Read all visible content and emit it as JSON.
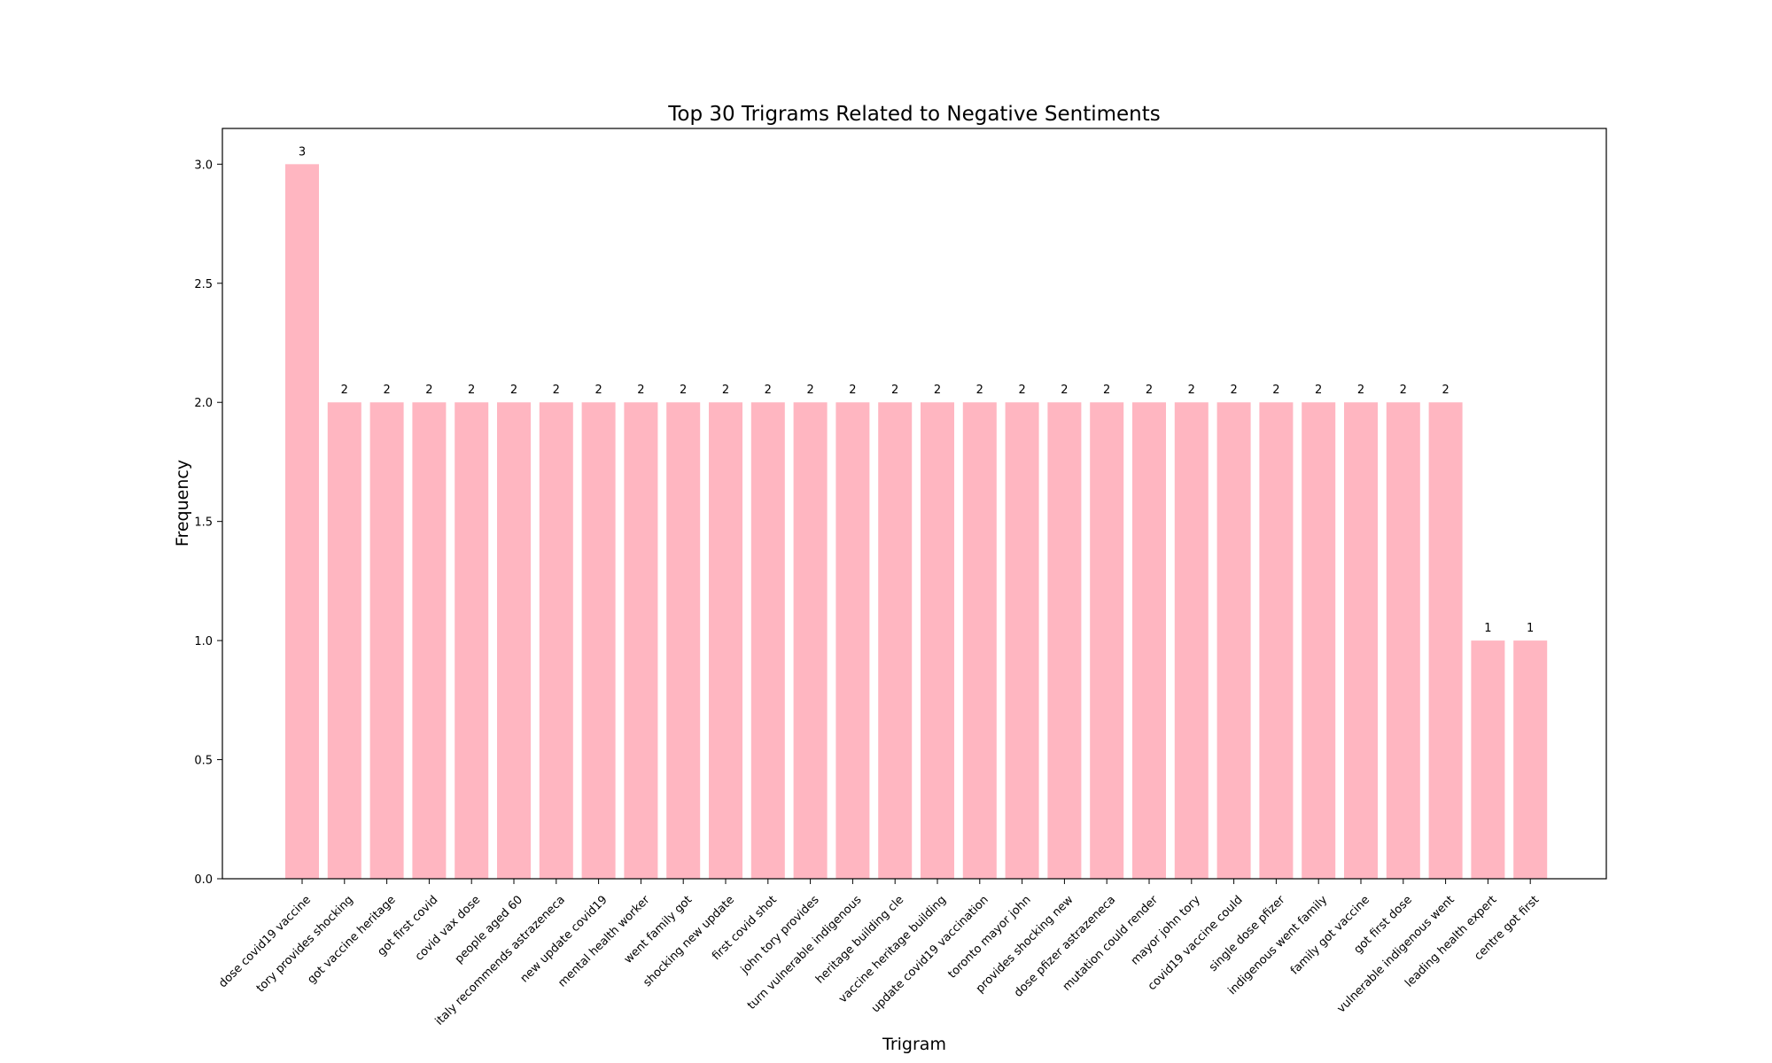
{
  "chart_data": {
    "type": "bar",
    "title": "Top 30 Trigrams Related to Negative Sentiments",
    "xlabel": "Trigram",
    "ylabel": "Frequency",
    "ylim": [
      0,
      3.15
    ],
    "yticks": [
      "0.0",
      "0.5",
      "1.0",
      "1.5",
      "2.0",
      "2.5",
      "3.0"
    ],
    "bar_color": "#ffb6c1",
    "grid": false,
    "categories": [
      "dose covid19 vaccine",
      "tory provides shocking",
      "got vaccine heritage",
      "got first covid",
      "covid vax dose",
      "people aged 60",
      "italy recommends astrazeneca",
      "new update covid19",
      "mental health worker",
      "went family got",
      "shocking new update",
      "first covid shot",
      "john tory provides",
      "turn vulnerable indigenous",
      "heritage building cle",
      "vaccine heritage building",
      "update covid19 vaccination",
      "toronto mayor john",
      "provides shocking new",
      "dose pfizer astrazeneca",
      "mutation could render",
      "mayor john tory",
      "covid19 vaccine could",
      "single dose pfizer",
      "indigenous went family",
      "family got vaccine",
      "got first dose",
      "vulnerable indigenous went",
      "leading health expert",
      "centre got first"
    ],
    "values": [
      3,
      2,
      2,
      2,
      2,
      2,
      2,
      2,
      2,
      2,
      2,
      2,
      2,
      2,
      2,
      2,
      2,
      2,
      2,
      2,
      2,
      2,
      2,
      2,
      2,
      2,
      2,
      2,
      1,
      1
    ],
    "data_labels": [
      "3",
      "2",
      "2",
      "2",
      "2",
      "2",
      "2",
      "2",
      "2",
      "2",
      "2",
      "2",
      "2",
      "2",
      "2",
      "2",
      "2",
      "2",
      "2",
      "2",
      "2",
      "2",
      "2",
      "2",
      "2",
      "2",
      "2",
      "2",
      "1",
      "1"
    ]
  }
}
